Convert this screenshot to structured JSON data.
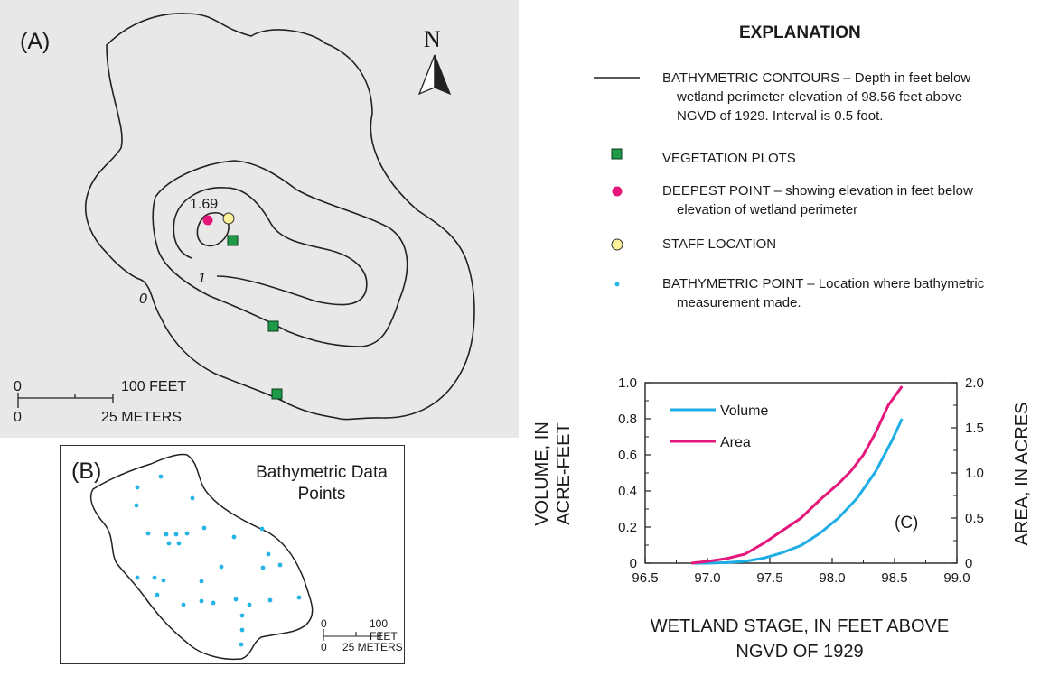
{
  "panel_a": {
    "label": "(A)",
    "north_label": "N",
    "contour_labels": {
      "zero": "0",
      "one": "1"
    },
    "deepest_value": "1.69",
    "scale": {
      "zero_top": "0",
      "feet": "100 FEET",
      "zero_bottom": "0",
      "meters": "25 METERS"
    },
    "colors": {
      "background": "#e8e8e8",
      "contour": "#222222",
      "vegetation": "#1f9a48",
      "deepest": "#e6157a",
      "staff": "#fdf29a",
      "bathymetric": "#26b3e6"
    }
  },
  "panel_b": {
    "label": "(B)",
    "title": "Bathymetric Data Points",
    "scale": {
      "zero_top": "0",
      "feet": "100 FEET",
      "zero_bottom": "0",
      "meters": "25 METERS"
    }
  },
  "explanation": {
    "title": "EXPLANATION",
    "items": [
      {
        "symbol": "contour-line",
        "lines": [
          "BATHYMETRIC CONTOURS – Depth in feet below",
          "wetland perimeter elevation of 98.56 feet above",
          "NGVD of 1929.  Interval is 0.5 foot."
        ]
      },
      {
        "symbol": "green-square",
        "lines": [
          "VEGETATION PLOTS"
        ]
      },
      {
        "symbol": "magenta-circle",
        "lines": [
          "DEEPEST POINT – showing elevation in feet below",
          "elevation of wetland perimeter"
        ]
      },
      {
        "symbol": "yellow-circle",
        "lines": [
          "STAFF LOCATION"
        ]
      },
      {
        "symbol": "blue-dot",
        "lines": [
          "BATHYMETRIC POINT – Location where bathymetric",
          "measurement made."
        ]
      }
    ]
  },
  "chart_data": {
    "type": "line",
    "panel_label": "(C)",
    "xlabel": "WETLAND STAGE, IN FEET ABOVE NGVD OF 1929",
    "ylabel_left": "VOLUME, IN ACRE-FEET",
    "ylabel_right": "AREA, IN ACRES",
    "xlim": [
      96.5,
      99.0
    ],
    "ylim_left": [
      0,
      1.0
    ],
    "ylim_right": [
      0,
      2.0
    ],
    "x_ticks": [
      "96.5",
      "97.0",
      "97.5",
      "98.0",
      "98.5",
      "99.0"
    ],
    "y_left_ticks": [
      "0",
      "0.2",
      "0.4",
      "0.6",
      "0.8",
      "1.0"
    ],
    "y_right_ticks": [
      "0",
      "0.5",
      "1.0",
      "1.5",
      "2.0"
    ],
    "legend_placement": "top-left",
    "series": [
      {
        "name": "Volume",
        "axis": "left",
        "color": "#1eaee6",
        "x": [
          96.87,
          97.0,
          97.15,
          97.3,
          97.45,
          97.6,
          97.75,
          97.9,
          98.05,
          98.2,
          98.35,
          98.48,
          98.56
        ],
        "y": [
          0.0,
          0.0,
          0.003,
          0.01,
          0.028,
          0.058,
          0.098,
          0.165,
          0.25,
          0.36,
          0.51,
          0.68,
          0.8
        ]
      },
      {
        "name": "Area",
        "axis": "right",
        "color": "#e5177c",
        "x": [
          96.87,
          97.0,
          97.15,
          97.3,
          97.45,
          97.6,
          97.75,
          97.9,
          98.05,
          98.15,
          98.25,
          98.35,
          98.45,
          98.56
        ],
        "y": [
          0.0,
          0.02,
          0.05,
          0.1,
          0.22,
          0.36,
          0.5,
          0.7,
          0.88,
          1.02,
          1.2,
          1.45,
          1.75,
          1.96
        ]
      }
    ]
  }
}
